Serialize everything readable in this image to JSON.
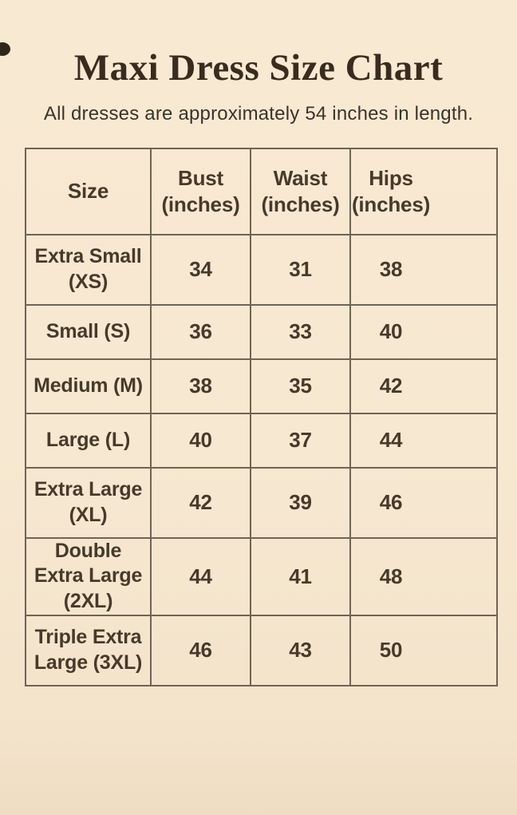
{
  "page": {
    "title": "Maxi Dress Size Chart",
    "subtitle": "All dresses are approximately 54 inches in length."
  },
  "colors": {
    "background": "#f7e8d1",
    "title_text": "#392c1e",
    "body_text": "#473a2a",
    "table_border": "#6f6454"
  },
  "size_chart": {
    "columns": [
      {
        "label": "Size",
        "unit": ""
      },
      {
        "label": "Bust",
        "unit": "(inches)"
      },
      {
        "label": "Waist",
        "unit": "(inches)"
      },
      {
        "label": "Hips",
        "unit": "(inches)"
      }
    ],
    "rows": [
      {
        "size": "Extra Small (XS)",
        "bust": "34",
        "waist": "31",
        "hips": "38"
      },
      {
        "size": "Small (S)",
        "bust": "36",
        "waist": "33",
        "hips": "40"
      },
      {
        "size": "Medium (M)",
        "bust": "38",
        "waist": "35",
        "hips": "42"
      },
      {
        "size": "Large (L)",
        "bust": "40",
        "waist": "37",
        "hips": "44"
      },
      {
        "size": "Extra Large (XL)",
        "bust": "42",
        "waist": "39",
        "hips": "46"
      },
      {
        "size": "Double Extra Large (2XL)",
        "bust": "44",
        "waist": "41",
        "hips": "48"
      },
      {
        "size": "Triple Extra Large (3XL)",
        "bust": "46",
        "waist": "43",
        "hips": "50"
      }
    ]
  },
  "chart_data": {
    "type": "table",
    "title": "Maxi Dress Size Chart",
    "subtitle": "All dresses are approximately 54 inches in length.",
    "columns": [
      "Size",
      "Bust (inches)",
      "Waist (inches)",
      "Hips (inches)"
    ],
    "rows": [
      [
        "Extra Small (XS)",
        34,
        31,
        38
      ],
      [
        "Small (S)",
        36,
        33,
        40
      ],
      [
        "Medium (M)",
        38,
        35,
        42
      ],
      [
        "Large (L)",
        40,
        37,
        44
      ],
      [
        "Extra Large (XL)",
        42,
        39,
        46
      ],
      [
        "Double Extra Large (2XL)",
        44,
        41,
        48
      ],
      [
        "Triple Extra Large (3XL)",
        46,
        43,
        50
      ]
    ],
    "grid": true,
    "legend_position": "none"
  }
}
